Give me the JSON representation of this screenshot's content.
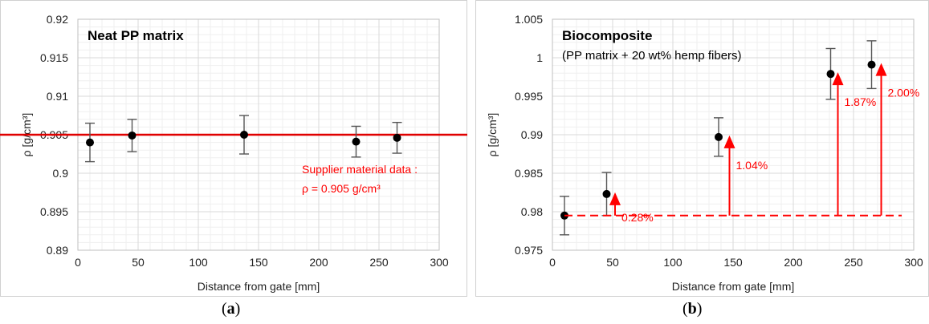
{
  "chart_data": [
    {
      "type": "scatter",
      "panel": "(a)",
      "title": "Neat PP matrix",
      "subtitle": "",
      "xlabel": "Distance from gate [mm]",
      "ylabel": "ρ [g/cm³]",
      "xlim": [
        0,
        300
      ],
      "ylim": [
        0.89,
        0.92
      ],
      "xticks": [
        0,
        50,
        100,
        150,
        200,
        250,
        300
      ],
      "yticks": [
        0.89,
        0.895,
        0.9,
        0.905,
        0.91,
        0.915,
        0.92
      ],
      "ytick_labels": [
        "0.89",
        "0.895",
        "0.9",
        "0.905",
        "0.91",
        "0.915",
        "0.92"
      ],
      "grid": true,
      "points": [
        {
          "x": 10,
          "y": 0.904,
          "err": 0.0025
        },
        {
          "x": 45,
          "y": 0.9049,
          "err": 0.0021
        },
        {
          "x": 138,
          "y": 0.905,
          "err": 0.0025
        },
        {
          "x": 231,
          "y": 0.9041,
          "err": 0.002
        },
        {
          "x": 265,
          "y": 0.9046,
          "err": 0.002
        }
      ],
      "reference_line": {
        "y": 0.905
      },
      "annotation_lines": [
        "Supplier material data :",
        "ρ = 0.905 g/cm³"
      ],
      "colors": {
        "points": "#000000",
        "reference": "#e00000",
        "annotation": "#ff0000",
        "grid": "#d9d9d9"
      }
    },
    {
      "type": "scatter",
      "panel": "(b)",
      "title": "Biocomposite",
      "subtitle": "(PP matrix + 20 wt% hemp fibers)",
      "xlabel": "Distance from gate [mm]",
      "ylabel": "ρ [g/cm³]",
      "xlim": [
        0,
        300
      ],
      "ylim": [
        0.975,
        1.005
      ],
      "xticks": [
        0,
        50,
        100,
        150,
        200,
        250,
        300
      ],
      "yticks": [
        0.975,
        0.98,
        0.985,
        0.99,
        0.995,
        1.0,
        1.005
      ],
      "ytick_labels": [
        "0.975",
        "0.98",
        "0.985",
        "0.99",
        "0.995",
        "1",
        "1.005"
      ],
      "grid": true,
      "points": [
        {
          "x": 10,
          "y": 0.9795,
          "err": 0.0025
        },
        {
          "x": 45,
          "y": 0.9823,
          "err": 0.0028
        },
        {
          "x": 138,
          "y": 0.9897,
          "err": 0.0025
        },
        {
          "x": 231,
          "y": 0.9979,
          "err": 0.0033
        },
        {
          "x": 265,
          "y": 0.9991,
          "err": 0.0031
        }
      ],
      "baseline": {
        "y": 0.9795,
        "x_start": 10,
        "x_end": 290
      },
      "increase_arrows": [
        {
          "x": 52,
          "y_to": 0.9823,
          "label": "0.28%"
        },
        {
          "x": 147,
          "y_to": 0.9897,
          "label": "1.04%"
        },
        {
          "x": 237,
          "y_to": 0.9979,
          "label": "1.87%"
        },
        {
          "x": 273,
          "y_to": 0.9991,
          "label": "2.00%"
        }
      ],
      "colors": {
        "points": "#000000",
        "arrows": "#ff0000",
        "grid": "#d9d9d9"
      }
    }
  ],
  "captions": [
    {
      "label": "a"
    },
    {
      "label": "b"
    }
  ]
}
